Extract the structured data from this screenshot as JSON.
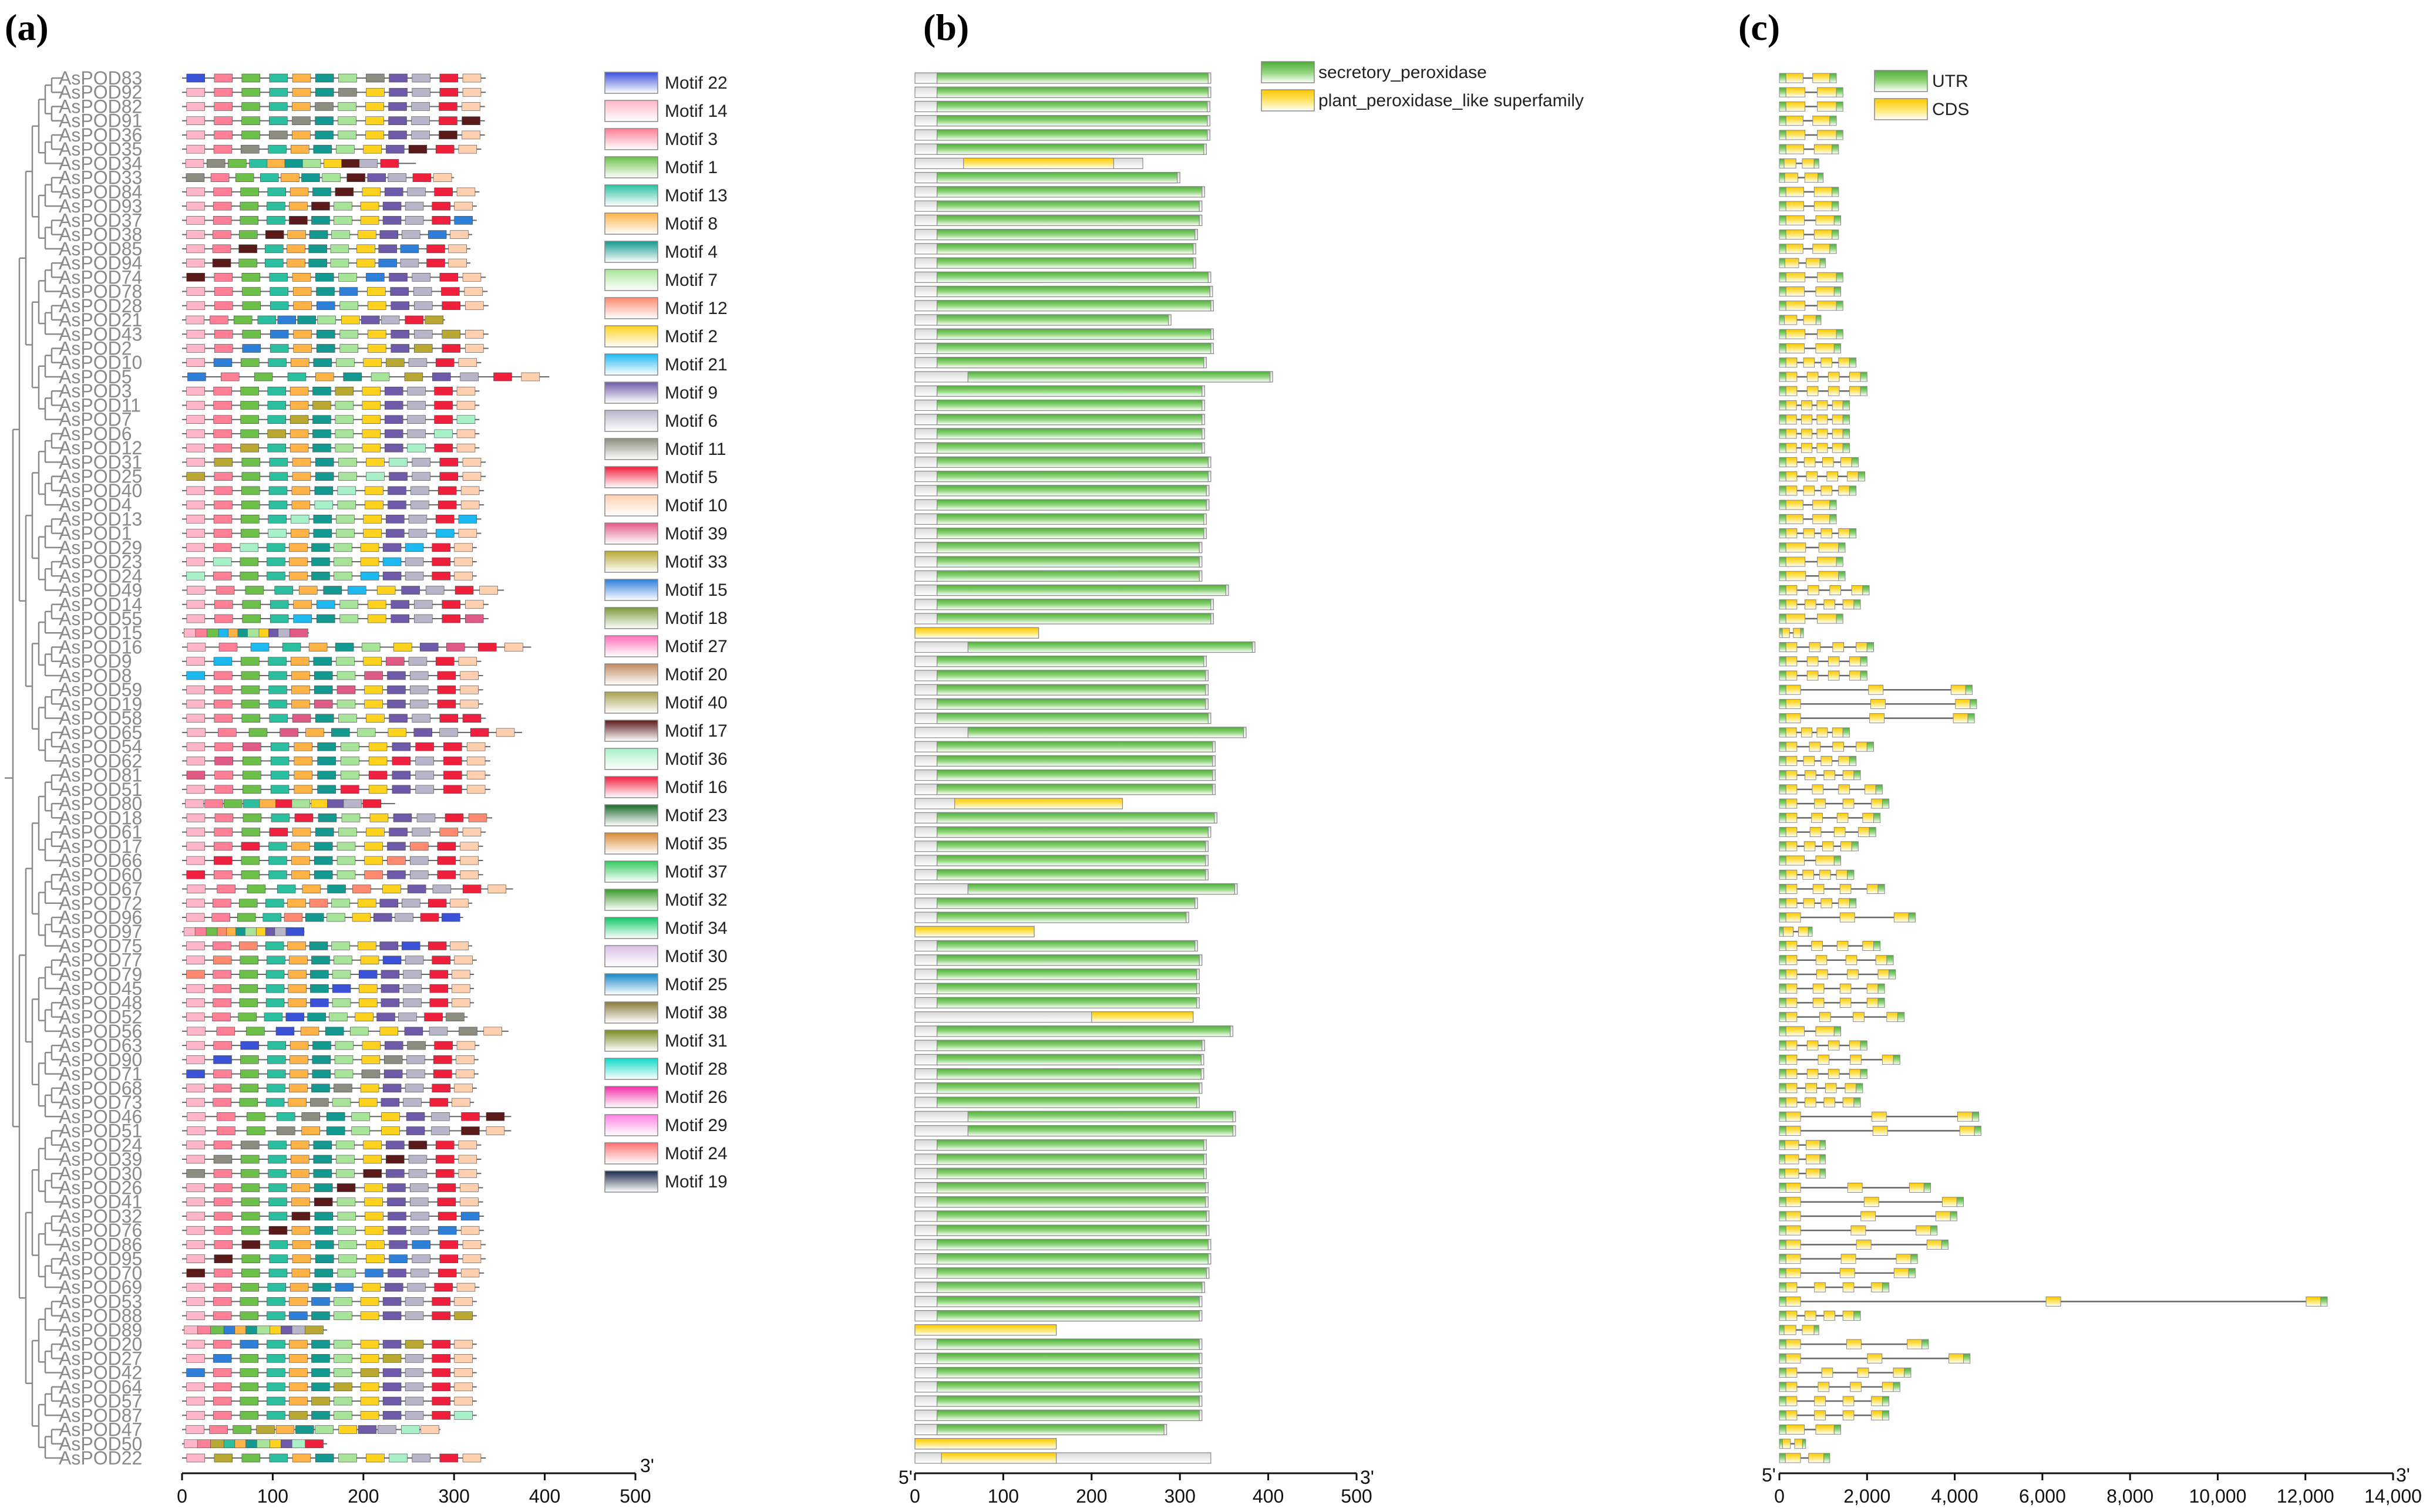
{
  "panels": {
    "a": {
      "letter": "(a)",
      "end_label": "3'",
      "ticks": [
        "0",
        "100",
        "200",
        "300",
        "400",
        "500"
      ]
    },
    "b": {
      "letter": "(b)",
      "start_label": "5'",
      "end_label": "3'",
      "ticks": [
        "0",
        "100",
        "200",
        "300",
        "400",
        "500"
      ]
    },
    "c": {
      "letter": "(c)",
      "start_label": "5'",
      "end_label": "3'",
      "ticks": [
        "0",
        "2,000",
        "4,000",
        "6,000",
        "8,000",
        "10,000",
        "12,000",
        "14,000"
      ]
    }
  },
  "genes": [
    {
      "name": "AsPOD83",
      "protein": 335,
      "special": null,
      "gene": 1300
    },
    {
      "name": "AsPOD92",
      "protein": 335,
      "special": null,
      "gene": 1450
    },
    {
      "name": "AsPOD82",
      "protein": 334,
      "special": null,
      "gene": 1450
    },
    {
      "name": "AsPOD91",
      "protein": 334,
      "special": null,
      "gene": 1300
    },
    {
      "name": "AsPOD36",
      "protein": 334,
      "special": null,
      "gene": 1450
    },
    {
      "name": "AsPOD35",
      "protein": 330,
      "special": null,
      "gene": 1350
    },
    {
      "name": "AsPOD34",
      "protein": 258,
      "special": [
        55,
        225
      ],
      "gene": 900
    },
    {
      "name": "AsPOD33",
      "protein": 300,
      "special": null,
      "gene": 1000
    },
    {
      "name": "AsPOD84",
      "protein": 328,
      "special": null,
      "gene": 1350
    },
    {
      "name": "AsPOD93",
      "protein": 325,
      "special": null,
      "gene": 1350
    },
    {
      "name": "AsPOD37",
      "protein": 325,
      "special": null,
      "gene": 1400
    },
    {
      "name": "AsPOD38",
      "protein": 320,
      "special": null,
      "gene": 1350
    },
    {
      "name": "AsPOD85",
      "protein": 318,
      "special": null,
      "gene": 1300
    },
    {
      "name": "AsPOD94",
      "protein": 318,
      "special": null,
      "gene": 1050
    },
    {
      "name": "AsPOD74",
      "protein": 335,
      "special": null,
      "gene": 1450
    },
    {
      "name": "AsPOD78",
      "protein": 337,
      "special": null,
      "gene": 1400
    },
    {
      "name": "AsPOD28",
      "protein": 338,
      "special": null,
      "gene": 1450
    },
    {
      "name": "AsPOD21",
      "protein": 290,
      "special": null,
      "gene": 950
    },
    {
      "name": "AsPOD43",
      "protein": 338,
      "special": null,
      "gene": 1450
    },
    {
      "name": "AsPOD2",
      "protein": 338,
      "special": null,
      "gene": 1400
    },
    {
      "name": "AsPOD10",
      "protein": 330,
      "special": null,
      "gene": 1750
    },
    {
      "name": "AsPOD5",
      "protein": 405,
      "special": null,
      "gene": 2000
    },
    {
      "name": "AsPOD3",
      "protein": 328,
      "special": null,
      "gene": 2000
    },
    {
      "name": "AsPOD11",
      "protein": 328,
      "special": null,
      "gene": 1600
    },
    {
      "name": "AsPOD7",
      "protein": 328,
      "special": null,
      "gene": 1600
    },
    {
      "name": "AsPOD6",
      "protein": 328,
      "special": null,
      "gene": 1600
    },
    {
      "name": "AsPOD12",
      "protein": 328,
      "special": null,
      "gene": 1600
    },
    {
      "name": "AsPOD31",
      "protein": 335,
      "special": null,
      "gene": 1800
    },
    {
      "name": "AsPOD25",
      "protein": 335,
      "special": null,
      "gene": 1950
    },
    {
      "name": "AsPOD40",
      "protein": 333,
      "special": null,
      "gene": 1750
    },
    {
      "name": "AsPOD4",
      "protein": 333,
      "special": null,
      "gene": 1300
    },
    {
      "name": "AsPOD13",
      "protein": 330,
      "special": null,
      "gene": 1300
    },
    {
      "name": "AsPOD1",
      "protein": 330,
      "special": null,
      "gene": 1750
    },
    {
      "name": "AsPOD29",
      "protein": 325,
      "special": null,
      "gene": 1500
    },
    {
      "name": "AsPOD23",
      "protein": 325,
      "special": null,
      "gene": 1450
    },
    {
      "name": "AsPOD24",
      "protein": 325,
      "special": null,
      "gene": 1500
    },
    {
      "name": "AsPOD49",
      "protein": 355,
      "special": null,
      "gene": 2050
    },
    {
      "name": "AsPOD14",
      "protein": 338,
      "special": null,
      "gene": 1850
    },
    {
      "name": "AsPOD55",
      "protein": 338,
      "special": null,
      "gene": 1450
    },
    {
      "name": "AsPOD15",
      "protein": 140,
      "special": [
        0,
        140
      ],
      "gene": 550
    },
    {
      "name": "AsPOD16",
      "protein": 385,
      "special": null,
      "gene": 2150
    },
    {
      "name": "AsPOD9",
      "protein": 330,
      "special": null,
      "gene": 2000
    },
    {
      "name": "AsPOD8",
      "protein": 332,
      "special": null,
      "gene": 2000
    },
    {
      "name": "AsPOD59",
      "protein": 332,
      "special": null,
      "gene": 4400
    },
    {
      "name": "AsPOD19",
      "protein": 332,
      "special": null,
      "gene": 4500
    },
    {
      "name": "AsPOD58",
      "protein": 335,
      "special": null,
      "gene": 4450
    },
    {
      "name": "AsPOD65",
      "protein": 375,
      "special": null,
      "gene": 1600
    },
    {
      "name": "AsPOD54",
      "protein": 340,
      "special": null,
      "gene": 2150
    },
    {
      "name": "AsPOD62",
      "protein": 340,
      "special": null,
      "gene": 1750
    },
    {
      "name": "AsPOD81",
      "protein": 340,
      "special": null,
      "gene": 1850
    },
    {
      "name": "AsPOD51",
      "protein": 340,
      "special": null,
      "gene": 2350
    },
    {
      "name": "AsPOD80",
      "protein": 235,
      "special": [
        45,
        235
      ],
      "gene": 2500
    },
    {
      "name": "AsPOD18",
      "protein": 342,
      "special": null,
      "gene": 2300
    },
    {
      "name": "AsPOD61",
      "protein": 335,
      "special": null,
      "gene": 2200
    },
    {
      "name": "AsPOD17",
      "protein": 332,
      "special": null,
      "gene": 1800
    },
    {
      "name": "AsPOD66",
      "protein": 332,
      "special": null,
      "gene": 1400
    },
    {
      "name": "AsPOD60",
      "protein": 332,
      "special": null,
      "gene": 1700
    },
    {
      "name": "AsPOD67",
      "protein": 365,
      "special": null,
      "gene": 2400
    },
    {
      "name": "AsPOD72",
      "protein": 320,
      "special": null,
      "gene": 1750
    },
    {
      "name": "AsPOD96",
      "protein": 310,
      "special": null,
      "gene": 3100
    },
    {
      "name": "AsPOD97",
      "protein": 135,
      "special": [
        0,
        135
      ],
      "gene": 750
    },
    {
      "name": "AsPOD75",
      "protein": 320,
      "special": null,
      "gene": 2300
    },
    {
      "name": "AsPOD77",
      "protein": 325,
      "special": null,
      "gene": 2600
    },
    {
      "name": "AsPOD79",
      "protein": 322,
      "special": null,
      "gene": 2650
    },
    {
      "name": "AsPOD45",
      "protein": 322,
      "special": null,
      "gene": 2400
    },
    {
      "name": "AsPOD48",
      "protein": 322,
      "special": null,
      "gene": 2400
    },
    {
      "name": "AsPOD52",
      "protein": 315,
      "special": [
        200,
        315
      ],
      "gene": 2850
    },
    {
      "name": "AsPOD56",
      "protein": 360,
      "special": null,
      "gene": 1400
    },
    {
      "name": "AsPOD63",
      "protein": 328,
      "special": null,
      "gene": 2000
    },
    {
      "name": "AsPOD90",
      "protein": 327,
      "special": null,
      "gene": 2750
    },
    {
      "name": "AsPOD71",
      "protein": 327,
      "special": null,
      "gene": 2000
    },
    {
      "name": "AsPOD68",
      "protein": 325,
      "special": null,
      "gene": 1900
    },
    {
      "name": "AsPOD73",
      "protein": 322,
      "special": null,
      "gene": 1850
    },
    {
      "name": "AsPOD46",
      "protein": 363,
      "special": null,
      "gene": 4550
    },
    {
      "name": "AsPOD51",
      "protein": 363,
      "special": null,
      "gene": 4600
    },
    {
      "name": "AsPOD24",
      "protein": 330,
      "special": null,
      "gene": 1050
    },
    {
      "name": "AsPOD39",
      "protein": 330,
      "special": null,
      "gene": 1050
    },
    {
      "name": "AsPOD30",
      "protein": 330,
      "special": null,
      "gene": 1050
    },
    {
      "name": "AsPOD26",
      "protein": 332,
      "special": null,
      "gene": 3450
    },
    {
      "name": "AsPOD41",
      "protein": 332,
      "special": null,
      "gene": 4200
    },
    {
      "name": "AsPOD32",
      "protein": 333,
      "special": null,
      "gene": 4050
    },
    {
      "name": "AsPOD76",
      "protein": 333,
      "special": null,
      "gene": 3600
    },
    {
      "name": "AsPOD86",
      "protein": 335,
      "special": null,
      "gene": 3850
    },
    {
      "name": "AsPOD95",
      "protein": 335,
      "special": null,
      "gene": 3150
    },
    {
      "name": "AsPOD70",
      "protein": 333,
      "special": null,
      "gene": 3100
    },
    {
      "name": "AsPOD69",
      "protein": 328,
      "special": null,
      "gene": 2500
    },
    {
      "name": "AsPOD53",
      "protein": 325,
      "special": null,
      "gene": 12500
    },
    {
      "name": "AsPOD88",
      "protein": 325,
      "special": null,
      "gene": 1850
    },
    {
      "name": "AsPOD89",
      "protein": 160,
      "special": [
        0,
        160
      ],
      "gene": 900
    },
    {
      "name": "AsPOD20",
      "protein": 325,
      "special": null,
      "gene": 3400
    },
    {
      "name": "AsPOD27",
      "protein": 325,
      "special": null,
      "gene": 4350
    },
    {
      "name": "AsPOD42",
      "protein": 325,
      "special": null,
      "gene": 3000
    },
    {
      "name": "AsPOD64",
      "protein": 325,
      "special": null,
      "gene": 2750
    },
    {
      "name": "AsPOD57",
      "protein": 325,
      "special": null,
      "gene": 2500
    },
    {
      "name": "AsPOD87",
      "protein": 325,
      "special": null,
      "gene": 2500
    },
    {
      "name": "AsPOD47",
      "protein": 285,
      "special": null,
      "gene": 1400
    },
    {
      "name": "AsPOD50",
      "protein": 160,
      "special": [
        0,
        160
      ],
      "gene": 600
    },
    {
      "name": "AsPOD22",
      "protein": 335,
      "special": [
        30,
        160
      ],
      "gene": 1150
    }
  ],
  "motif_legend": [
    {
      "label": "Motif 22",
      "color": "#3a52d8"
    },
    {
      "label": "Motif 14",
      "color": "#ffb6c8"
    },
    {
      "label": "Motif 3",
      "color": "#ff7f96"
    },
    {
      "label": "Motif 1",
      "color": "#6cc04a"
    },
    {
      "label": "Motif 13",
      "color": "#2bbfa0"
    },
    {
      "label": "Motif 8",
      "color": "#ffb347"
    },
    {
      "label": "Motif 4",
      "color": "#13998f"
    },
    {
      "label": "Motif 7",
      "color": "#a8e39a"
    },
    {
      "label": "Motif 12",
      "color": "#ff8a70"
    },
    {
      "label": "Motif 2",
      "color": "#ffd21f"
    },
    {
      "label": "Motif 21",
      "color": "#1cb8f0"
    },
    {
      "label": "Motif 9",
      "color": "#6e5aa8"
    },
    {
      "label": "Motif 6",
      "color": "#b8b5c8"
    },
    {
      "label": "Motif 11",
      "color": "#8c8c80"
    },
    {
      "label": "Motif 5",
      "color": "#f0203c"
    },
    {
      "label": "Motif 10",
      "color": "#ffd0b0"
    },
    {
      "label": "Motif 39",
      "color": "#e05a86"
    },
    {
      "label": "Motif 33",
      "color": "#b8a832"
    },
    {
      "label": "Motif 15",
      "color": "#2d7fd8"
    },
    {
      "label": "Motif 18",
      "color": "#7a9a3c"
    },
    {
      "label": "Motif 27",
      "color": "#ff6fb8"
    },
    {
      "label": "Motif 20",
      "color": "#c08a60"
    },
    {
      "label": "Motif 40",
      "color": "#a8a050"
    },
    {
      "label": "Motif 17",
      "color": "#5a1a1a"
    },
    {
      "label": "Motif 36",
      "color": "#a8f0c8"
    },
    {
      "label": "Motif 16",
      "color": "#f02040"
    },
    {
      "label": "Motif 23",
      "color": "#1a6a2a"
    },
    {
      "label": "Motif 35",
      "color": "#d88a30"
    },
    {
      "label": "Motif 37",
      "color": "#30c860"
    },
    {
      "label": "Motif 32",
      "color": "#3a9a2a"
    },
    {
      "label": "Motif 34",
      "color": "#10c868"
    },
    {
      "label": "Motif 30",
      "color": "#d8c0e8"
    },
    {
      "label": "Motif 25",
      "color": "#1888c8"
    },
    {
      "label": "Motif 38",
      "color": "#8a7a3a"
    },
    {
      "label": "Motif 31",
      "color": "#7a8a20"
    },
    {
      "label": "Motif 28",
      "color": "#10d8c8"
    },
    {
      "label": "Motif 26",
      "color": "#f030a8"
    },
    {
      "label": "Motif 29",
      "color": "#ff80e0"
    },
    {
      "label": "Motif 24",
      "color": "#ff7070"
    },
    {
      "label": "Motif 19",
      "color": "#1a2a4a"
    }
  ],
  "domain_legend": [
    {
      "label": "secretory_peroxidase",
      "color": "#6cc04a"
    },
    {
      "label": "plant_peroxidase_like superfamily",
      "color": "#ffd21f"
    }
  ],
  "gene_legend": [
    {
      "label": "UTR",
      "color": "#6cc04a"
    },
    {
      "label": "CDS",
      "color": "#ffd21f"
    }
  ]
}
